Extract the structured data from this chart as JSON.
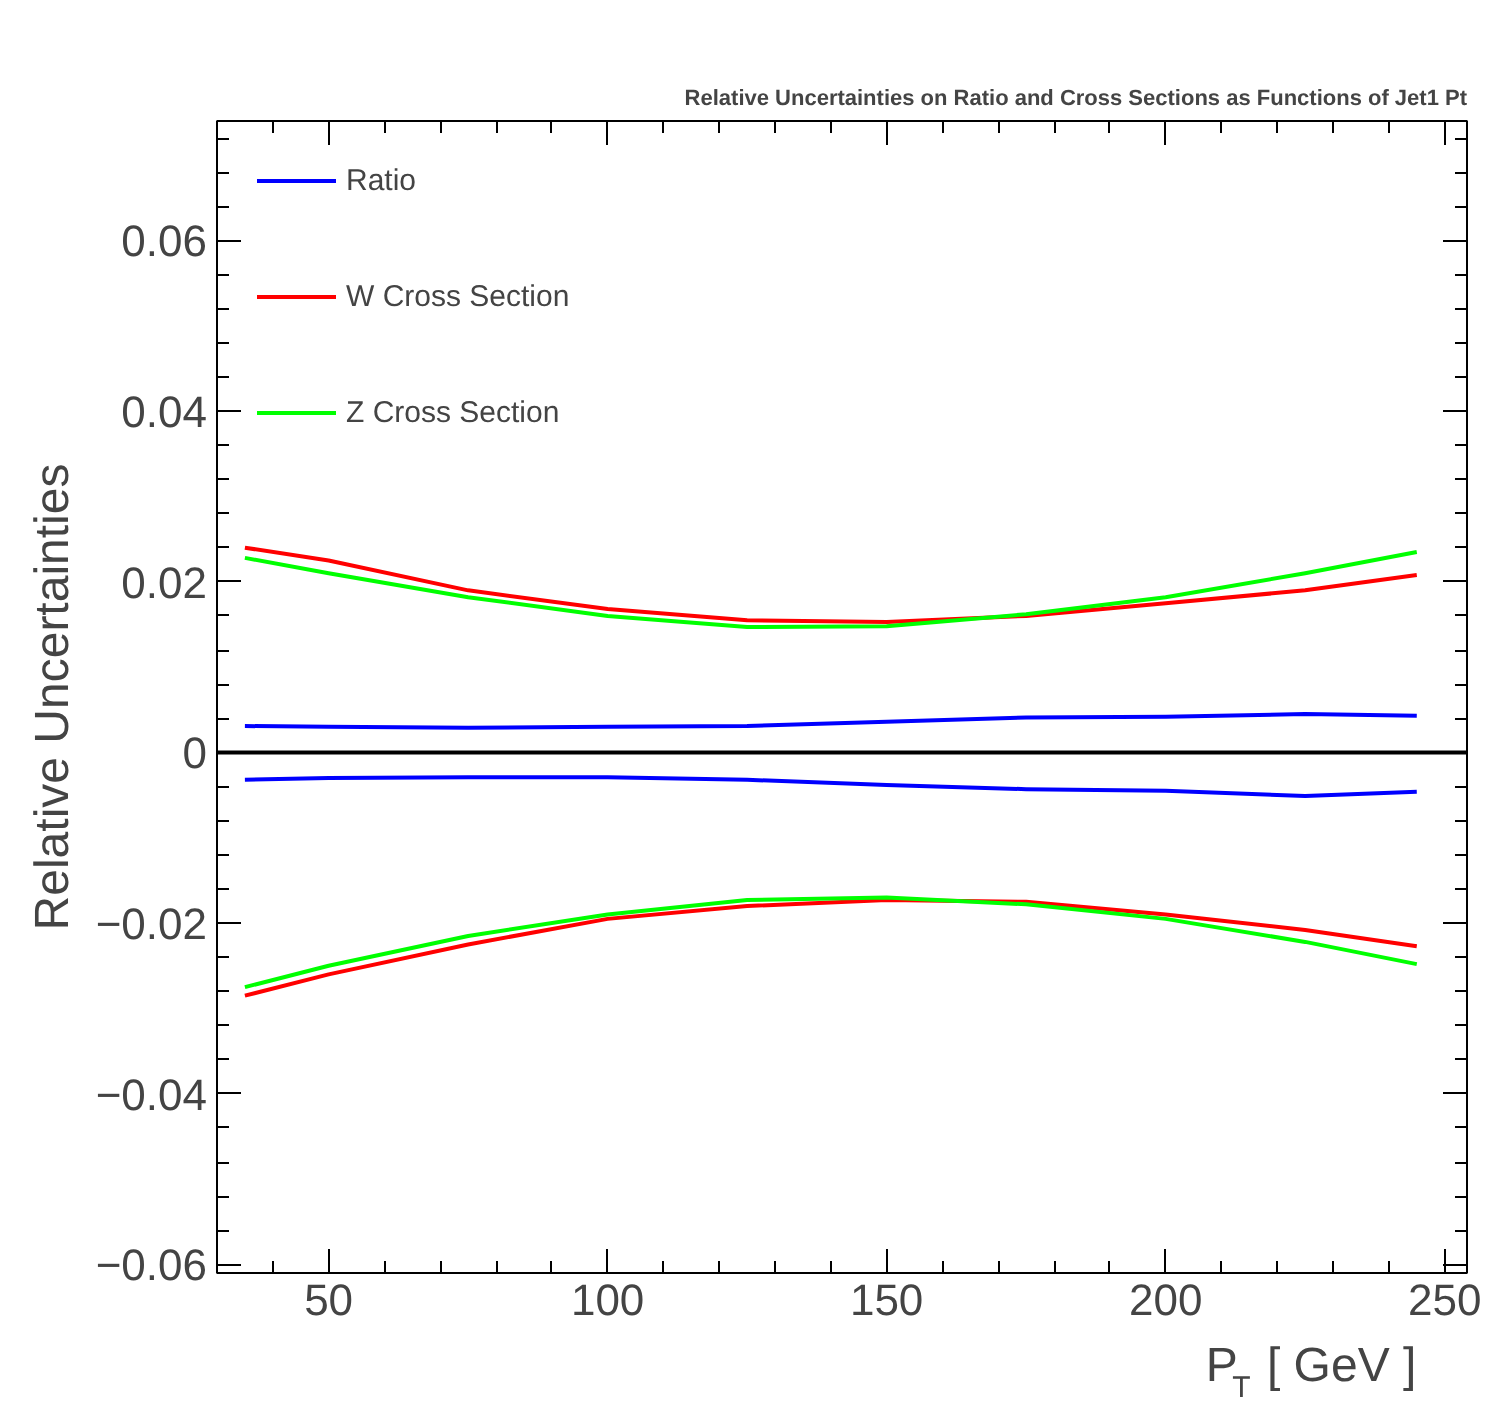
{
  "chart_data": {
    "type": "line",
    "title": "Relative Uncertainties on Ratio and Cross Sections as Functions of Jet1 Pt",
    "xlabel": "P$_{T}$ [ GeV ]",
    "ylabel": "Relative Uncertainties",
    "xlim": [
      30,
      254
    ],
    "ylim": [
      -0.061,
      0.074
    ],
    "xticks": [
      50,
      100,
      150,
      200,
      250
    ],
    "yticks": [
      -0.06,
      -0.04,
      -0.02,
      {
        "value": 0,
        "label": "0"
      },
      0.02,
      0.04,
      0.06
    ],
    "grid": false,
    "legend": "top left",
    "marker": "none",
    "line_style": "solid",
    "ref_lines": [
      {
        "axis": "y",
        "value": 0,
        "label": null,
        "color": "#000000"
      }
    ],
    "x": [
      35,
      50,
      75,
      100,
      125,
      150,
      175,
      200,
      225,
      245
    ],
    "series": [
      {
        "name": "Ratio",
        "color": "#0000ff",
        "values": [
          0.0031,
          0.003,
          0.0029,
          0.003,
          0.0031,
          0.0036,
          0.0041,
          0.0042,
          0.0045,
          0.0043
        ]
      },
      {
        "name": "W Cross Section",
        "color": "#ff0000",
        "values": [
          0.024,
          0.0225,
          0.019,
          0.0168,
          0.0155,
          0.0153,
          0.016,
          0.0175,
          0.019,
          0.0208
        ]
      },
      {
        "name": "Z Cross Section",
        "color": "#00ff00",
        "values": [
          0.0228,
          0.021,
          0.0182,
          0.016,
          0.0147,
          0.0148,
          0.0162,
          0.0182,
          0.021,
          0.0235
        ]
      },
      {
        "color": "#0000ff",
        "values": [
          -0.0032,
          -0.003,
          -0.0029,
          -0.0029,
          -0.0032,
          -0.0038,
          -0.0043,
          -0.0045,
          -0.0051,
          -0.0046
        ]
      },
      {
        "color": "#ff0000",
        "values": [
          -0.0285,
          -0.026,
          -0.0225,
          -0.0195,
          -0.018,
          -0.0173,
          -0.0175,
          -0.019,
          -0.0208,
          -0.0227
        ]
      },
      {
        "color": "#00ff00",
        "values": [
          -0.0275,
          -0.025,
          -0.0215,
          -0.019,
          -0.0173,
          -0.017,
          -0.0178,
          -0.0195,
          -0.0222,
          -0.0248
        ]
      }
    ]
  }
}
